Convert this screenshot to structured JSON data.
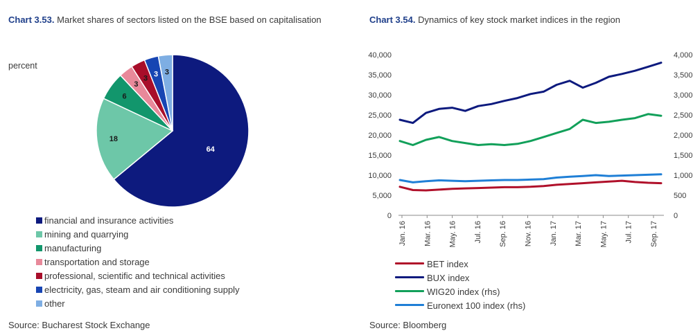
{
  "charts": {
    "left": {
      "number": "Chart 3.53.",
      "title": "Market shares of sectors listed on the BSE based on capitalisation",
      "unit": "percent",
      "source": "Source: Bucharest Stock Exchange"
    },
    "right": {
      "number": "Chart 3.54.",
      "title": "Dynamics of key stock market indices in the region",
      "source": "Source: Bloomberg"
    }
  },
  "chart_data": [
    {
      "type": "pie",
      "title": "Market shares of sectors listed on the BSE based on capitalisation",
      "unit": "percent",
      "legend_position": "bottom",
      "slices": [
        {
          "label": "financial and insurance activities",
          "value": 64,
          "color": "#0d1a7e"
        },
        {
          "label": "mining and quarrying",
          "value": 18,
          "color": "#6dc7a8"
        },
        {
          "label": "manufacturing",
          "value": 6,
          "color": "#12966c"
        },
        {
          "label": "transportation and storage",
          "value": 3,
          "color": "#e8899a"
        },
        {
          "label": "professional, scientific and technical activities",
          "value": 3,
          "color": "#a80e2a"
        },
        {
          "label": "electricity, gas, steam and air conditioning supply",
          "value": 3,
          "color": "#1745b3"
        },
        {
          "label": "other",
          "value": 3,
          "color": "#7eaee3"
        }
      ]
    },
    {
      "type": "line",
      "title": "Dynamics of key stock market indices in the region",
      "x_tick_labels": [
        "Jan. 16",
        "Mar. 16",
        "May. 16",
        "Jul. 16",
        "Sep. 16",
        "Nov. 16",
        "Jan. 17",
        "Mar. 17",
        "May. 17",
        "Jul. 17",
        "Sep. 17"
      ],
      "y_left": {
        "ticks": [
          "0",
          "5,000",
          "10,000",
          "15,000",
          "20,000",
          "25,000",
          "30,000",
          "35,000",
          "40,000"
        ],
        "range": [
          0,
          40000
        ]
      },
      "y_right": {
        "ticks": [
          "0",
          "500",
          "1,000",
          "1,500",
          "2,000",
          "2,500",
          "3,000",
          "3,500",
          "4,000"
        ],
        "range": [
          0,
          4000
        ]
      },
      "grid": false,
      "legend_position": "bottom",
      "series": [
        {
          "name": "BET index",
          "axis": "left",
          "color": "#b0102a",
          "values": [
            7100,
            6300,
            6200,
            6400,
            6600,
            6700,
            6800,
            6900,
            7000,
            7000,
            7100,
            7300,
            7600,
            7800,
            8000,
            8200,
            8400,
            8600,
            8300,
            8100,
            8000
          ]
        },
        {
          "name": "BUX index",
          "axis": "left",
          "color": "#0d1a7e",
          "values": [
            23800,
            23000,
            25500,
            26500,
            26800,
            26000,
            27200,
            27700,
            28500,
            29200,
            30200,
            30800,
            32500,
            33500,
            31800,
            33000,
            34500,
            35200,
            36000,
            37000,
            38000
          ]
        },
        {
          "name": "WIG20 index (rhs)",
          "axis": "right",
          "color": "#12a05a",
          "values": [
            1850,
            1750,
            1880,
            1950,
            1850,
            1800,
            1750,
            1770,
            1750,
            1780,
            1850,
            1950,
            2050,
            2150,
            2380,
            2300,
            2330,
            2380,
            2420,
            2520,
            2480
          ]
        },
        {
          "name": "Euronext 100 index (rhs)",
          "axis": "right",
          "color": "#1f7fd6",
          "values": [
            880,
            820,
            850,
            870,
            860,
            850,
            860,
            870,
            880,
            880,
            890,
            900,
            940,
            960,
            980,
            1000,
            980,
            990,
            1000,
            1010,
            1020
          ]
        }
      ]
    }
  ]
}
